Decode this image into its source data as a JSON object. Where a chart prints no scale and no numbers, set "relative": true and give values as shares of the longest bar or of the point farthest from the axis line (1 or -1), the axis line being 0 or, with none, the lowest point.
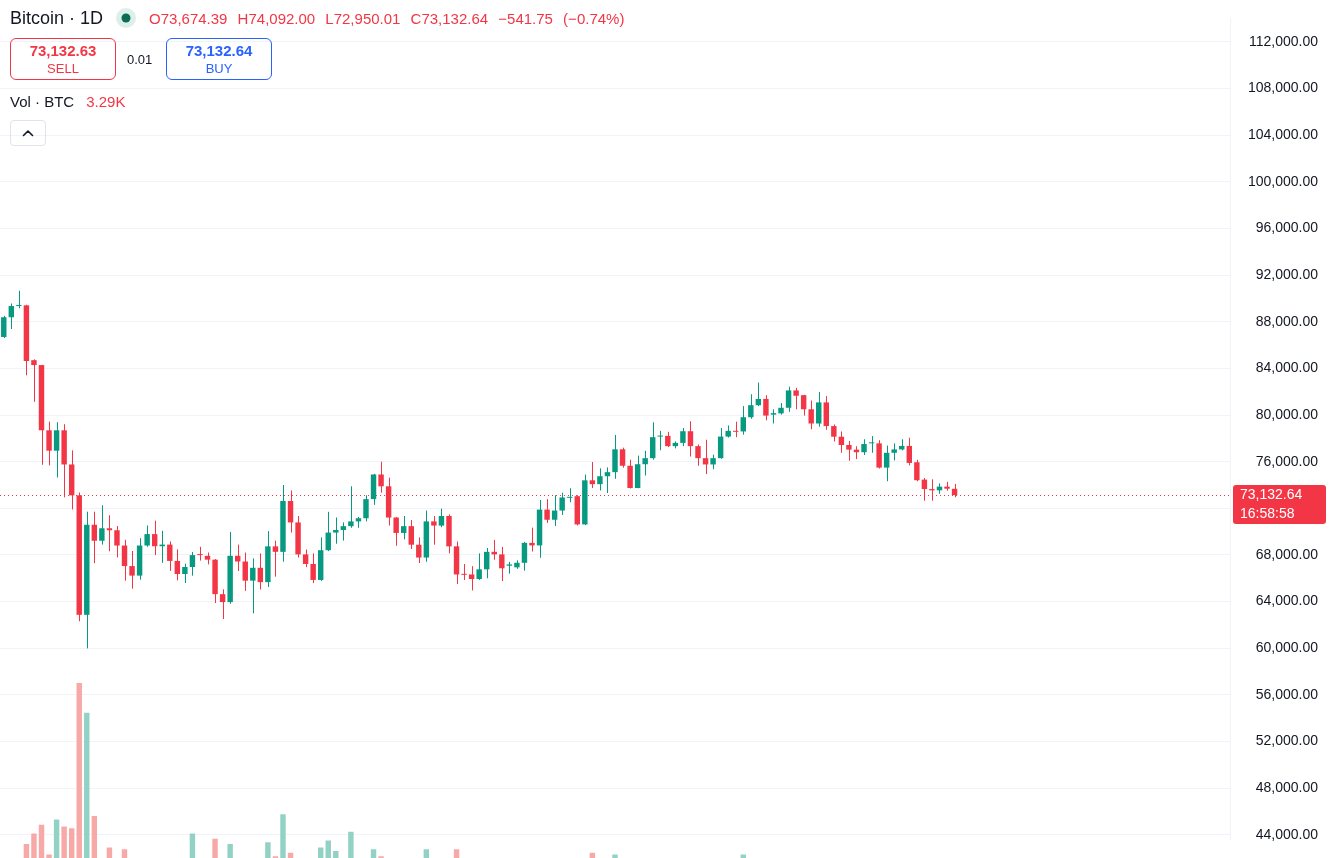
{
  "chart_data": [
    {
      "type": "candlestick",
      "title": "Bitcoin · 1D",
      "subtitle": "O73,674.39 H74,092.00 L72,950.01 C73,132.64 −541.75 (−0.74%)",
      "categories": [
        null,
        null,
        null,
        null,
        null,
        null,
        null,
        null,
        null,
        null,
        null,
        null,
        null,
        null,
        null,
        null,
        null,
        null,
        null,
        null,
        null,
        null,
        null,
        null,
        null,
        null,
        null,
        null,
        null,
        null,
        null,
        null,
        null,
        null,
        null,
        null,
        null,
        null,
        null,
        null,
        null,
        null,
        null,
        null,
        null,
        null,
        null,
        null,
        null,
        null,
        null,
        null,
        null,
        null,
        null,
        null,
        null,
        null,
        null,
        null,
        null,
        null,
        null,
        null,
        null,
        null,
        null,
        null,
        null,
        null,
        null,
        null,
        null,
        null,
        null,
        null,
        null,
        null,
        null,
        null,
        null,
        null,
        null,
        null,
        null,
        null,
        null,
        null,
        null,
        null,
        null,
        null,
        null,
        null,
        null,
        null,
        null,
        null,
        null,
        null,
        null,
        null,
        null,
        null,
        null,
        null,
        null,
        null,
        null,
        null,
        null,
        null,
        null,
        null,
        null,
        null,
        null,
        null,
        null,
        null,
        null,
        null,
        null,
        null,
        null,
        null,
        null,
        null,
        null,
        null,
        null,
        null,
        null,
        null,
        null,
        null,
        null,
        null,
        null,
        null,
        null,
        null,
        null,
        null,
        null,
        null,
        null,
        null,
        null,
        null,
        null,
        null,
        null,
        null,
        null,
        null,
        null,
        null,
        null,
        null,
        null,
        null,
        null
      ],
      "ohlc": [
        [
          86690,
          88500,
          86600,
          88380
        ],
        [
          88380,
          89560,
          87370,
          89340
        ],
        [
          89340,
          90650,
          89150,
          89400
        ],
        [
          89400,
          89450,
          83400,
          84630
        ],
        [
          84700,
          84770,
          81130,
          84280
        ],
        [
          84280,
          84300,
          75730,
          78690
        ],
        [
          78690,
          79430,
          75680,
          76940
        ],
        [
          76940,
          79380,
          74640,
          78690
        ],
        [
          78690,
          79210,
          72940,
          75760
        ],
        [
          75760,
          76970,
          71900,
          73110
        ],
        [
          73110,
          73350,
          62320,
          62870
        ],
        [
          62870,
          71710,
          59990,
          70590
        ],
        [
          70590,
          71710,
          67300,
          69220
        ],
        [
          69220,
          72260,
          68890,
          70290
        ],
        [
          70290,
          71410,
          68320,
          70120
        ],
        [
          70120,
          70480,
          67790,
          68810
        ],
        [
          68810,
          69300,
          65800,
          67050
        ],
        [
          67050,
          68340,
          65110,
          66230
        ],
        [
          66230,
          69440,
          65880,
          68810
        ],
        [
          68810,
          70530,
          68700,
          69790
        ],
        [
          69790,
          70940,
          67990,
          68750
        ],
        [
          68750,
          70070,
          67330,
          68890
        ],
        [
          68890,
          69160,
          66640,
          67490
        ],
        [
          67490,
          68480,
          65820,
          66370
        ],
        [
          66370,
          67250,
          65600,
          66970
        ],
        [
          66970,
          68260,
          66230,
          67990
        ],
        [
          68070,
          68700,
          67520,
          67990
        ],
        [
          67930,
          68210,
          67190,
          67600
        ],
        [
          67600,
          67650,
          63880,
          64640
        ],
        [
          64640,
          65060,
          62510,
          63960
        ],
        [
          63960,
          69980,
          63820,
          67930
        ],
        [
          67930,
          68890,
          66620,
          67440
        ],
        [
          67440,
          68210,
          64920,
          65800
        ],
        [
          65800,
          67700,
          63000,
          66900
        ],
        [
          66900,
          68140,
          65040,
          65670
        ],
        [
          65670,
          70050,
          65260,
          68740
        ],
        [
          68740,
          69230,
          66140,
          68270
        ],
        [
          68270,
          74000,
          67420,
          72630
        ],
        [
          72630,
          73530,
          69920,
          70790
        ],
        [
          70790,
          71340,
          67780,
          68050
        ],
        [
          68050,
          68470,
          66960,
          67230
        ],
        [
          67230,
          68140,
          65590,
          65860
        ],
        [
          65860,
          69510,
          65780,
          68410
        ],
        [
          68410,
          71700,
          68330,
          69920
        ],
        [
          69920,
          71210,
          68960,
          70140
        ],
        [
          70140,
          70790,
          69230,
          70470
        ],
        [
          70470,
          73890,
          70330,
          70880
        ],
        [
          70880,
          71260,
          70330,
          71150
        ],
        [
          71150,
          73120,
          70880,
          72790
        ],
        [
          72790,
          74950,
          72300,
          74900
        ],
        [
          74900,
          76000,
          73340,
          73890
        ],
        [
          73890,
          74630,
          70520,
          71210
        ],
        [
          71210,
          71250,
          68790,
          69890
        ],
        [
          69890,
          71340,
          69340,
          70470
        ],
        [
          70470,
          70990,
          68520,
          68880
        ],
        [
          68880,
          69510,
          67310,
          67780
        ],
        [
          67780,
          71810,
          67420,
          70880
        ],
        [
          70880,
          71340,
          68880,
          70520
        ],
        [
          70520,
          71970,
          70380,
          71340
        ],
        [
          71340,
          71480,
          68140,
          68740
        ],
        [
          68740,
          69150,
          65510,
          66330
        ],
        [
          66380,
          67230,
          65860,
          66300
        ],
        [
          66330,
          67040,
          64960,
          65940
        ],
        [
          65940,
          68140,
          65860,
          66770
        ],
        [
          66770,
          68600,
          66000,
          68270
        ],
        [
          68270,
          69290,
          67590,
          68050
        ],
        [
          68050,
          68690,
          65770,
          66860
        ],
        [
          67080,
          67410,
          66400,
          67190
        ],
        [
          66940,
          67540,
          66810,
          67330
        ],
        [
          67330,
          69120,
          66650,
          69040
        ],
        [
          69040,
          70340,
          68300,
          68820
        ],
        [
          68820,
          72710,
          67760,
          71890
        ],
        [
          71890,
          72790,
          70750,
          71020
        ],
        [
          71020,
          73120,
          70480,
          71810
        ],
        [
          71810,
          73340,
          71430,
          72930
        ],
        [
          72900,
          73720,
          72520,
          72980
        ],
        [
          73040,
          73120,
          70530,
          70620
        ],
        [
          70620,
          74890,
          70560,
          74400
        ],
        [
          74400,
          75970,
          73740,
          74070
        ],
        [
          74070,
          75430,
          73530,
          74750
        ],
        [
          74750,
          75510,
          73310,
          75100
        ],
        [
          75100,
          78290,
          74530,
          77060
        ],
        [
          77060,
          77200,
          75490,
          75650
        ],
        [
          75650,
          76170,
          73700,
          73740
        ],
        [
          73740,
          76520,
          73720,
          75780
        ],
        [
          75780,
          76930,
          74810,
          76300
        ],
        [
          76300,
          79370,
          76170,
          78100
        ],
        [
          78150,
          78640,
          76980,
          78230
        ],
        [
          78210,
          78560,
          77250,
          77330
        ],
        [
          77330,
          77740,
          77140,
          77610
        ],
        [
          77610,
          78890,
          77330,
          78610
        ],
        [
          78610,
          79460,
          76440,
          77330
        ],
        [
          77330,
          77470,
          75650,
          76300
        ],
        [
          76300,
          77880,
          74940,
          75760
        ],
        [
          75760,
          76600,
          75350,
          76300
        ],
        [
          76300,
          78890,
          76250,
          78150
        ],
        [
          78150,
          79100,
          78070,
          78640
        ],
        [
          78640,
          79430,
          78100,
          78560
        ],
        [
          78590,
          80760,
          78320,
          79810
        ],
        [
          79810,
          81780,
          79680,
          80840
        ],
        [
          80840,
          82780,
          80760,
          81380
        ],
        [
          81380,
          81700,
          79540,
          79950
        ],
        [
          80030,
          80490,
          79270,
          80160
        ],
        [
          80140,
          81030,
          80030,
          80620
        ],
        [
          80620,
          82430,
          80270,
          82110
        ],
        [
          82110,
          82330,
          80490,
          81650
        ],
        [
          81700,
          81730,
          79950,
          80490
        ],
        [
          80490,
          81240,
          78780,
          79270
        ],
        [
          79270,
          81970,
          79000,
          81080
        ],
        [
          81080,
          81620,
          78730,
          79050
        ],
        [
          79050,
          79190,
          77730,
          78140
        ],
        [
          78140,
          78590,
          76760,
          77430
        ],
        [
          77430,
          77780,
          76080,
          77030
        ],
        [
          77030,
          77320,
          76220,
          76810
        ],
        [
          76810,
          77920,
          76570,
          77510
        ],
        [
          77570,
          78190,
          76760,
          77620
        ],
        [
          77570,
          77840,
          75410,
          75490
        ],
        [
          75490,
          77380,
          74320,
          76760
        ],
        [
          76760,
          77570,
          76110,
          77050
        ],
        [
          77050,
          77920,
          76970,
          77350
        ],
        [
          77350,
          78050,
          75680,
          75890
        ],
        [
          75950,
          76160,
          74320,
          74410
        ],
        [
          74460,
          74600,
          72650,
          73650
        ],
        [
          73650,
          74490,
          72650,
          73540
        ],
        [
          73540,
          74140,
          73240,
          73860
        ],
        [
          73860,
          74270,
          73510,
          73680
        ],
        [
          73674.39,
          74092.0,
          72950.01,
          73132.64
        ],
        null,
        null,
        null,
        null,
        null,
        null,
        null,
        null,
        null,
        null,
        null,
        null,
        null,
        null,
        null,
        null,
        null,
        null,
        null,
        null,
        null,
        null,
        null,
        null,
        null,
        null,
        null,
        null,
        null,
        null,
        null,
        null,
        null,
        null,
        null,
        null
      ],
      "colors": [
        "#089981",
        "#089981",
        "#089981",
        "#f23645",
        "#f23645",
        "#f23645",
        "#f23645",
        "#089981",
        "#f23645",
        "#f23645",
        "#f23645",
        "#089981",
        "#f23645",
        "#089981",
        "#f23645",
        "#f23645",
        "#f23645",
        "#f23645",
        "#089981",
        "#089981",
        "#f23645",
        "#089981",
        "#f23645",
        "#f23645",
        "#089981",
        "#089981",
        "#f23645",
        "#f23645",
        "#f23645",
        "#f23645",
        "#089981",
        "#f23645",
        "#f23645",
        "#089981",
        "#f23645",
        "#089981",
        "#f23645",
        "#089981",
        "#f23645",
        "#f23645",
        "#f23645",
        "#f23645",
        "#089981",
        "#089981",
        "#089981",
        "#089981",
        "#089981",
        "#089981",
        "#089981",
        "#089981",
        "#f23645",
        "#f23645",
        "#f23645",
        "#089981",
        "#f23645",
        "#f23645",
        "#089981",
        "#f23645",
        "#089981",
        "#f23645",
        "#f23645",
        "#f23645",
        "#f23645",
        "#089981",
        "#089981",
        "#f23645",
        "#f23645",
        "#089981",
        "#089981",
        "#089981",
        "#f23645",
        "#089981",
        "#f23645",
        "#089981",
        "#089981",
        "#089981",
        "#f23645",
        "#089981",
        "#f23645",
        "#089981",
        "#089981",
        "#089981",
        "#f23645",
        "#f23645",
        "#089981",
        "#089981",
        "#089981",
        "#089981",
        "#f23645",
        "#089981",
        "#089981",
        "#f23645",
        "#f23645",
        "#f23645",
        "#089981",
        "#089981",
        "#089981",
        "#f23645",
        "#089981",
        "#089981",
        "#089981",
        "#f23645",
        "#089981",
        "#089981",
        "#089981",
        "#f23645",
        "#f23645",
        "#f23645",
        "#089981",
        "#f23645",
        "#f23645",
        "#f23645",
        "#f23645",
        "#f23645",
        "#089981",
        "#089981",
        "#f23645",
        "#089981",
        "#089981",
        "#089981",
        "#f23645",
        "#f23645",
        "#f23645",
        "#f23645",
        "#089981",
        "#f23645",
        "#f23645",
        null,
        null,
        null,
        null,
        null,
        null,
        null,
        null,
        null,
        null,
        null,
        null,
        null,
        null,
        null,
        null,
        null,
        null,
        null,
        null,
        null,
        null,
        null,
        null,
        null,
        null,
        null,
        null,
        null,
        null,
        null,
        null,
        null,
        null,
        null,
        null
      ],
      "ylim": [
        43600,
        114000
      ],
      "yticks": [
        {
          "value": 44000,
          "label": "44,000.00"
        },
        {
          "value": 48000,
          "label": "48,000.00"
        },
        {
          "value": 52000,
          "label": "52,000.00"
        },
        {
          "value": 56000,
          "label": "56,000.00"
        },
        {
          "value": 60000,
          "label": "60,000.00"
        },
        {
          "value": 64000,
          "label": "64,000.00"
        },
        {
          "value": 68000,
          "label": "68,000.00"
        },
        {
          "value": 72000,
          "label": null
        },
        {
          "value": 76000,
          "label": "76,000.00"
        },
        {
          "value": 80000,
          "label": "80,000.00"
        },
        {
          "value": 84000,
          "label": "84,000.00"
        },
        {
          "value": 88000,
          "label": "88,000.00"
        },
        {
          "value": 92000,
          "label": "92,000.00"
        },
        {
          "value": 96000,
          "label": "96,000.00"
        },
        {
          "value": 100000,
          "label": "100,000.00"
        },
        {
          "value": 104000,
          "label": "104,000.00"
        },
        {
          "value": 108000,
          "label": "108,000.00"
        },
        {
          "value": 112000,
          "label": "112,000.00"
        }
      ],
      "grid": "y",
      "tick_labels": "y",
      "ref_lines": [
        {
          "axis": "y",
          "value": 73132.64,
          "label": "73,132.64",
          "color": "#f23645",
          "line_style": "dotted"
        }
      ],
      "annotations": [
        "73,132.63",
        "SELL",
        "0.01",
        "73,132.64",
        "BUY",
        "16:58:58"
      ]
    },
    {
      "type": "bar",
      "title": "Vol · BTC",
      "annotations": [
        "3.29K"
      ],
      "relative": true,
      "categories": [
        null,
        null,
        null,
        null,
        null,
        null,
        null,
        null,
        null,
        null,
        null,
        null,
        null,
        null,
        null,
        null,
        null,
        null,
        null,
        null,
        null,
        null,
        null,
        null,
        null,
        null,
        null,
        null,
        null,
        null,
        null,
        null,
        null,
        null,
        null,
        null,
        null,
        null,
        null,
        null,
        null,
        null,
        null,
        null,
        null,
        null,
        null,
        null,
        null,
        null,
        null,
        null,
        null,
        null,
        null,
        null,
        null,
        null,
        null,
        null,
        null,
        null,
        null,
        null,
        null,
        null,
        null,
        null,
        null,
        null,
        null,
        null,
        null,
        null,
        null,
        null,
        null,
        null,
        null,
        null,
        null,
        null,
        null,
        null,
        null,
        null,
        null,
        null,
        null,
        null,
        null,
        null,
        null,
        null,
        null,
        null,
        null,
        null,
        null,
        null,
        null,
        null,
        null,
        null,
        null,
        null,
        null,
        null,
        null,
        null,
        null,
        null,
        null,
        null,
        null,
        null,
        null,
        null,
        null,
        null,
        null,
        null,
        null,
        null,
        null,
        null,
        null,
        null,
        null,
        null,
        null,
        null,
        null,
        null,
        null,
        null,
        null,
        null,
        null,
        null,
        null,
        null,
        null,
        null,
        null,
        null,
        null,
        null,
        null,
        null,
        null,
        null,
        null,
        null,
        null,
        null,
        null,
        null,
        null,
        null,
        null,
        null,
        null
      ],
      "values": [
        null,
        null,
        null,
        0.08,
        0.14,
        0.19,
        0.02,
        0.22,
        0.18,
        0.17,
        1,
        0.83,
        0.24,
        null,
        0.06,
        null,
        0.05,
        null,
        null,
        null,
        null,
        null,
        null,
        null,
        null,
        0.14,
        null,
        null,
        0.11,
        null,
        0.08,
        null,
        null,
        null,
        null,
        0.09,
        0.01,
        0.25,
        0.03,
        null,
        null,
        null,
        0.06,
        0.1,
        0.04,
        null,
        0.15,
        null,
        null,
        0.05,
        0.01,
        null,
        null,
        null,
        null,
        null,
        0.05,
        null,
        null,
        null,
        0.05,
        null,
        null,
        null,
        null,
        null,
        null,
        null,
        null,
        null,
        null,
        null,
        null,
        null,
        null,
        null,
        null,
        null,
        0.03,
        null,
        null,
        0.02,
        null,
        null,
        null,
        null,
        null,
        null,
        null,
        null,
        null,
        null,
        null,
        null,
        null,
        null,
        null,
        null,
        0.02,
        null,
        null,
        null,
        null,
        null,
        null,
        null,
        null,
        null,
        null,
        null,
        null,
        null,
        null,
        null,
        null,
        null,
        null,
        null,
        null,
        null,
        null,
        null,
        null,
        null,
        null,
        null,
        null,
        null,
        null,
        null,
        null,
        null,
        null,
        null,
        null,
        null,
        null,
        null,
        null,
        null,
        null,
        null,
        null,
        null,
        null,
        null,
        null,
        null,
        null,
        null,
        null,
        null,
        null,
        null,
        null,
        null,
        null,
        null,
        null,
        null,
        null,
        null,
        null
      ],
      "colors": [
        "#92d2c5",
        "#92d2c5",
        "#92d2c5",
        "#f7a9a7",
        "#f7a9a7",
        "#f7a9a7",
        "#f7a9a7",
        "#92d2c5",
        "#f7a9a7",
        "#f7a9a7",
        "#f7a9a7",
        "#92d2c5",
        "#f7a9a7",
        "#92d2c5",
        "#f7a9a7",
        "#f7a9a7",
        "#f7a9a7",
        "#f7a9a7",
        "#92d2c5",
        "#92d2c5",
        "#f7a9a7",
        "#92d2c5",
        "#f7a9a7",
        "#f7a9a7",
        "#92d2c5",
        "#92d2c5",
        "#f7a9a7",
        "#f7a9a7",
        "#f7a9a7",
        "#f7a9a7",
        "#92d2c5",
        "#f7a9a7",
        "#f7a9a7",
        "#92d2c5",
        "#f7a9a7",
        "#92d2c5",
        "#f7a9a7",
        "#92d2c5",
        "#f7a9a7",
        "#f7a9a7",
        "#f7a9a7",
        "#f7a9a7",
        "#92d2c5",
        "#92d2c5",
        "#92d2c5",
        "#92d2c5",
        "#92d2c5",
        "#92d2c5",
        "#92d2c5",
        "#92d2c5",
        "#f7a9a7",
        "#f7a9a7",
        "#f7a9a7",
        "#92d2c5",
        "#f7a9a7",
        "#f7a9a7",
        "#92d2c5",
        "#f7a9a7",
        "#92d2c5",
        "#f7a9a7",
        "#f7a9a7",
        "#f7a9a7",
        "#f7a9a7",
        "#92d2c5",
        "#92d2c5",
        "#f7a9a7",
        "#f7a9a7",
        "#92d2c5",
        "#92d2c5",
        "#92d2c5",
        "#f7a9a7",
        "#92d2c5",
        "#f7a9a7",
        "#92d2c5",
        "#92d2c5",
        "#92d2c5",
        "#f7a9a7",
        "#92d2c5",
        "#f7a9a7",
        "#92d2c5",
        "#92d2c5",
        "#92d2c5",
        "#f7a9a7",
        "#f7a9a7",
        "#92d2c5",
        "#92d2c5",
        "#92d2c5",
        "#92d2c5",
        "#f7a9a7",
        "#92d2c5",
        "#92d2c5",
        "#f7a9a7",
        "#f7a9a7",
        "#f7a9a7",
        "#92d2c5",
        "#92d2c5",
        "#92d2c5",
        "#f7a9a7",
        "#92d2c5",
        "#92d2c5",
        "#92d2c5",
        "#f7a9a7",
        "#92d2c5",
        "#92d2c5",
        "#92d2c5",
        "#f7a9a7",
        "#f7a9a7",
        "#f7a9a7",
        "#92d2c5",
        "#f7a9a7",
        "#f7a9a7",
        "#f7a9a7",
        "#f7a9a7",
        "#f7a9a7",
        "#92d2c5",
        "#92d2c5",
        "#f7a9a7",
        "#92d2c5",
        "#92d2c5",
        "#92d2c5",
        "#f7a9a7",
        "#f7a9a7",
        "#f7a9a7",
        "#f7a9a7",
        "#92d2c5",
        "#f7a9a7",
        "#f7a9a7",
        null,
        null,
        null,
        null,
        null,
        null,
        null,
        null,
        null,
        null,
        null,
        null,
        null,
        null,
        null,
        null,
        null,
        null,
        null,
        null,
        null,
        null,
        null,
        null,
        null,
        null,
        null,
        null,
        null,
        null,
        null,
        null,
        null,
        null,
        null,
        null
      ]
    }
  ]
}
